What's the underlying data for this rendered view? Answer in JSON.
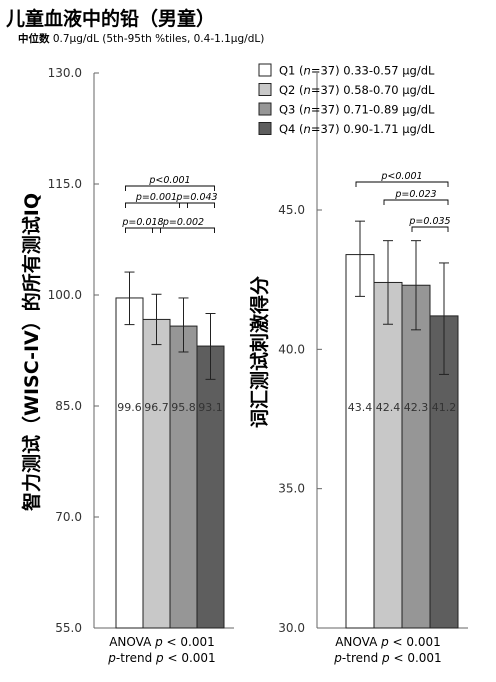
{
  "title": "儿童血液中的铅（男童）",
  "subtitle": {
    "label": "中位数",
    "text": "0.7μg/dL (5th-95th %tiles, 0.4-1.1μg/dL)"
  },
  "legend": [
    {
      "label": "Q1 (n=37) 0.33-0.57 μg/dL",
      "color": "#ffffff"
    },
    {
      "label": "Q2 (n=37) 0.58-0.70 μg/dL",
      "color": "#c8c8c8"
    },
    {
      "label": "Q3 (n=37) 0.71-0.89 μg/dL",
      "color": "#969696"
    },
    {
      "label": "Q4 (n=37) 0.90-1.71 μg/dL",
      "color": "#5e5e5e"
    }
  ],
  "chart_data": [
    {
      "type": "bar",
      "ylabel": "智力测试（WISC-IV）的所有测试IQ",
      "ylim": [
        55.0,
        130.0
      ],
      "yticks": [
        "55.0",
        "70.0",
        "85.0",
        "100.0",
        "115.0",
        "130.0"
      ],
      "categories": [
        "Q1",
        "Q2",
        "Q3",
        "Q4"
      ],
      "values": [
        99.6,
        96.7,
        95.8,
        93.1
      ],
      "value_labels": [
        "99.6",
        "96.7",
        "95.8",
        "93.1"
      ],
      "error_low": [
        96.0,
        93.3,
        92.3,
        88.6
      ],
      "error_high": [
        103.1,
        100.1,
        99.6,
        97.5
      ],
      "comparisons": [
        {
          "from": 0,
          "to": 3,
          "label": "p<0.001"
        },
        {
          "from": 0,
          "to": 2,
          "label": "p=0.001"
        },
        {
          "from": 2,
          "to": 3,
          "label": "p=0.043"
        },
        {
          "from": 0,
          "to": 1,
          "label": "p=0.018"
        },
        {
          "from": 1,
          "to": 3,
          "label": "p=0.002"
        }
      ],
      "footer": [
        "ANOVA p < 0.001",
        "p-trend p < 0.001"
      ]
    },
    {
      "type": "bar",
      "ylabel": "词汇测试刺激得分",
      "ylim": [
        30.0,
        45.0
      ],
      "yticks": [
        "30.0",
        "35.0",
        "40.0",
        "45.0"
      ],
      "categories": [
        "Q1",
        "Q2",
        "Q3",
        "Q4"
      ],
      "values": [
        43.4,
        42.4,
        42.3,
        41.2
      ],
      "value_labels": [
        "43.4",
        "42.4",
        "42.3",
        "41.2"
      ],
      "error_low": [
        41.9,
        40.9,
        40.7,
        39.1
      ],
      "error_high": [
        44.6,
        43.9,
        43.9,
        43.1
      ],
      "comparisons": [
        {
          "from": 0,
          "to": 3,
          "label": "p<0.001"
        },
        {
          "from": 1,
          "to": 3,
          "label": "p=0.023"
        },
        {
          "from": 2,
          "to": 3,
          "label": "p=0.035"
        }
      ],
      "footer": [
        "ANOVA p < 0.001",
        "p-trend p < 0.001"
      ]
    }
  ]
}
